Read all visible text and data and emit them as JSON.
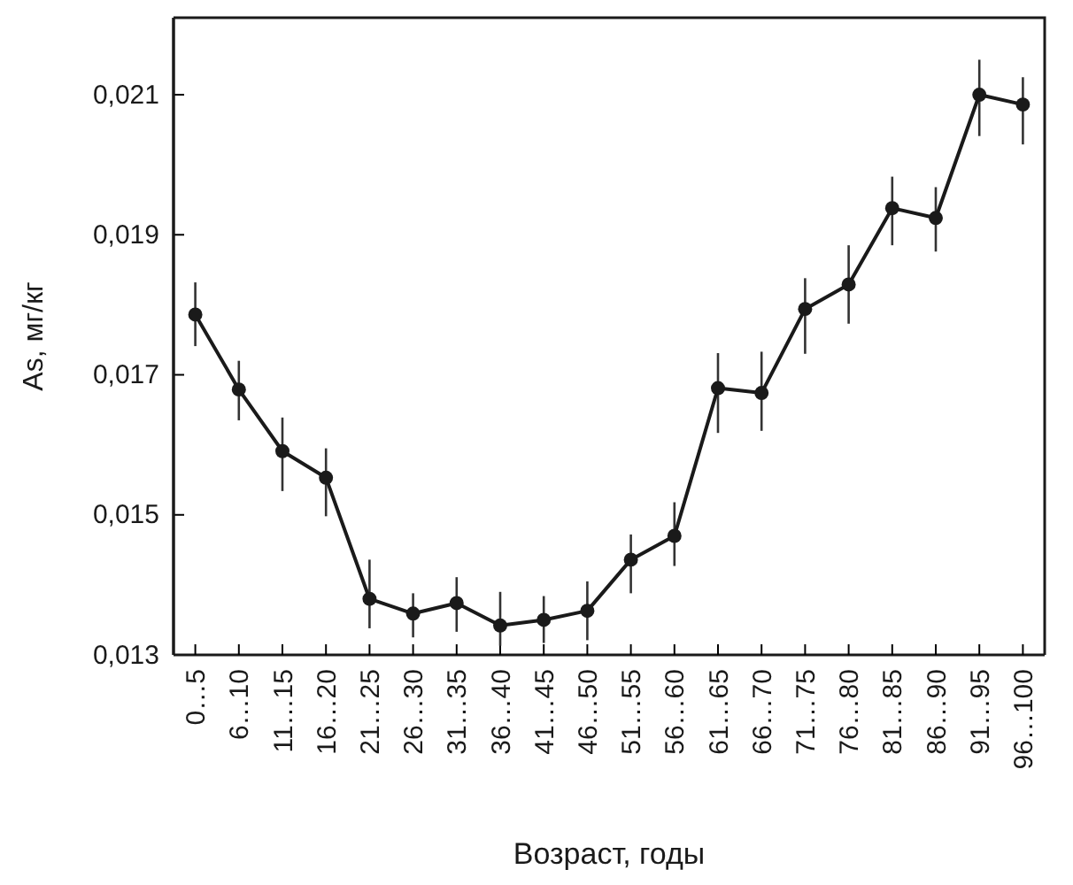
{
  "chart_data": {
    "type": "line",
    "xlabel": "Возраст, годы",
    "ylabel": "As, мг/кг",
    "categories": [
      "0…5",
      "6…10",
      "11…15",
      "16…20",
      "21…25",
      "26…30",
      "31…35",
      "36…40",
      "41…45",
      "46…50",
      "51…55",
      "56…60",
      "61…65",
      "66…70",
      "71…75",
      "76…80",
      "81…85",
      "86…90",
      "91…95",
      "96…100"
    ],
    "series": [
      {
        "color": "#1a1a1a",
        "values": [
          0.01786,
          0.01679,
          0.01591,
          0.01553,
          0.0138,
          0.01359,
          0.01374,
          0.01342,
          0.0135,
          0.01363,
          0.01436,
          0.0147,
          0.01681,
          0.01674,
          0.01794,
          0.01829,
          0.01938,
          0.01924,
          0.021,
          0.02086
        ],
        "errors": [
          [
            0.01741,
            0.01832
          ],
          [
            0.01635,
            0.0172
          ],
          [
            0.01534,
            0.01639
          ],
          [
            0.01498,
            0.01595
          ],
          [
            0.01338,
            0.01436
          ],
          [
            0.01325,
            0.01388
          ],
          [
            0.01333,
            0.01411
          ],
          [
            0.01313,
            0.0139
          ],
          [
            0.01317,
            0.01384
          ],
          [
            0.01321,
            0.01405
          ],
          [
            0.01388,
            0.01472
          ],
          [
            0.01427,
            0.01518
          ],
          [
            0.01617,
            0.01731
          ],
          [
            0.0162,
            0.01733
          ],
          [
            0.0173,
            0.01838
          ],
          [
            0.01773,
            0.01885
          ],
          [
            0.01885,
            0.01983
          ],
          [
            0.01876,
            0.01968
          ],
          [
            0.02041,
            0.0215
          ],
          [
            0.02029,
            0.02125
          ]
        ]
      }
    ],
    "ylim": [
      0.013,
      0.0221
    ],
    "yticks": [
      {
        "value": 0.013,
        "label": "0,013"
      },
      {
        "value": 0.015,
        "label": "0,015"
      },
      {
        "value": 0.017,
        "label": "0,017"
      },
      {
        "value": 0.019,
        "label": "0,019"
      },
      {
        "value": 0.021,
        "label": "0,021"
      }
    ],
    "marker": "circle",
    "line_style": "solid"
  }
}
